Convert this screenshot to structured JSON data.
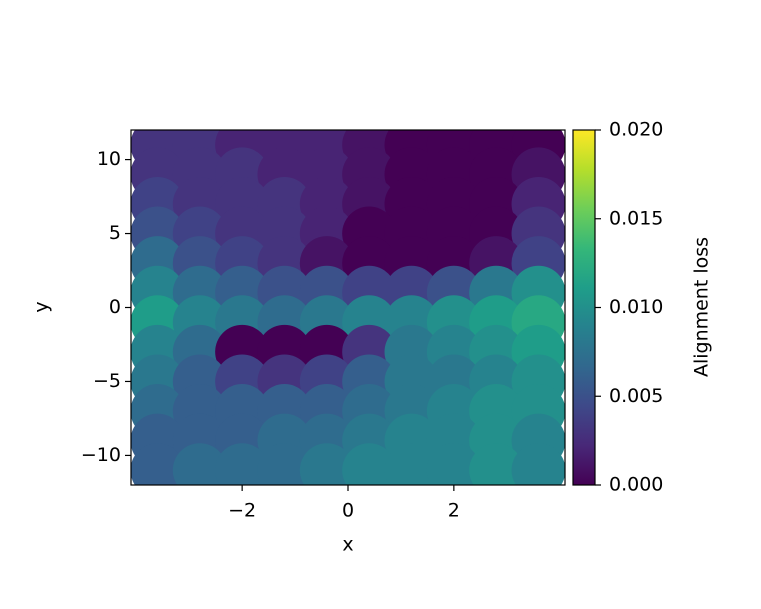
{
  "chart_data": {
    "type": "scatter",
    "x_label": "x",
    "y_label": "y",
    "colorbar_label": "Alignment loss",
    "colormap": "viridis",
    "xlim": [
      -4.1,
      4.1
    ],
    "ylim": [
      -12,
      12
    ],
    "clim": [
      0,
      0.02
    ],
    "xticks": [
      {
        "value": -2,
        "label": "−2"
      },
      0,
      2
    ],
    "yticks": [
      {
        "value": -10,
        "label": "−10"
      },
      {
        "value": -5,
        "label": "−5"
      },
      0,
      5,
      10
    ],
    "cticks": [
      {
        "value": 0,
        "label": "0.000"
      },
      {
        "value": 0.005,
        "label": "0.005"
      },
      {
        "value": 0.01,
        "label": "0.010"
      },
      {
        "value": 0.015,
        "label": "0.015"
      },
      {
        "value": 0.02,
        "label": "0.020"
      }
    ],
    "x": [
      -3.6,
      -2.8,
      -2.0,
      -1.2,
      -0.4,
      0.4,
      1.2,
      2.0,
      2.8,
      3.6,
      -3.6,
      -2.8,
      -2.0,
      -1.2,
      -0.4,
      0.4,
      1.2,
      2.0,
      2.8,
      3.6,
      -3.6,
      -2.8,
      -2.0,
      -1.2,
      -0.4,
      0.4,
      1.2,
      2.0,
      2.8,
      3.6,
      -3.6,
      -2.8,
      -2.0,
      -1.2,
      -0.4,
      0.4,
      1.2,
      2.0,
      2.8,
      3.6,
      -3.6,
      -2.8,
      -2.0,
      -1.2,
      -0.4,
      0.4,
      1.2,
      2.0,
      2.8,
      3.6,
      -3.6,
      -2.8,
      -2.0,
      -1.2,
      -0.4,
      0.4,
      1.2,
      2.0,
      2.8,
      3.6,
      -3.6,
      -2.8,
      -2.0,
      -1.2,
      -0.4,
      0.4,
      1.2,
      2.0,
      2.8,
      3.6,
      -3.6,
      -2.8,
      -2.0,
      -1.2,
      -0.4,
      0.4,
      1.2,
      2.0,
      2.8,
      3.6,
      -3.6,
      -2.8,
      -2.0,
      -1.2,
      -0.4,
      0.4,
      1.2,
      2.0,
      2.8,
      3.6,
      -3.6,
      -2.8,
      -2.0,
      -1.2,
      -0.4,
      0.4,
      1.2,
      2.0,
      2.8,
      3.6,
      -3.6,
      -2.8,
      -2.0,
      -1.2,
      -0.4,
      0.4,
      1.2,
      2.0,
      2.8,
      3.6,
      -3.6,
      -2.8,
      -2.0,
      -1.2,
      -0.4,
      0.4,
      1.2,
      2.0,
      2.8,
      3.6
    ],
    "y": [
      11,
      11,
      11,
      11,
      11,
      11,
      11,
      11,
      11,
      11,
      9,
      9,
      9,
      9,
      9,
      9,
      9,
      9,
      9,
      9,
      7,
      7,
      7,
      7,
      7,
      7,
      7,
      7,
      7,
      7,
      5,
      5,
      5,
      5,
      5,
      5,
      5,
      5,
      5,
      5,
      3,
      3,
      3,
      3,
      3,
      3,
      3,
      3,
      3,
      3,
      1,
      1,
      1,
      1,
      1,
      1,
      1,
      1,
      1,
      1,
      -1,
      -1,
      -1,
      -1,
      -1,
      -1,
      -1,
      -1,
      -1,
      -1,
      -3,
      -3,
      -3,
      -3,
      -3,
      -3,
      -3,
      -3,
      -3,
      -3,
      -5,
      -5,
      -5,
      -5,
      -5,
      -5,
      -5,
      -5,
      -5,
      -5,
      -7,
      -7,
      -7,
      -7,
      -7,
      -7,
      -7,
      -7,
      -7,
      -7,
      -9,
      -9,
      -9,
      -9,
      -9,
      -9,
      -9,
      -9,
      -9,
      -9,
      -11,
      -11,
      -11,
      -11,
      -11,
      -11,
      -11,
      -11,
      -11,
      -11
    ],
    "values": [
      0.003,
      0.003,
      0.002,
      0.002,
      0.002,
      0.001,
      0,
      0,
      0,
      0,
      0.003,
      0.003,
      0.003,
      0.002,
      0.002,
      0.001,
      0,
      0,
      0,
      0.001,
      0.004,
      0.003,
      0.003,
      0.003,
      0.002,
      0.001,
      0,
      0,
      0,
      0.002,
      0.005,
      0.004,
      0.003,
      0.003,
      0.002,
      0,
      0,
      0,
      0,
      0.003,
      0.007,
      0.005,
      0.004,
      0.003,
      0.001,
      0,
      0,
      0,
      0.001,
      0.004,
      0.009,
      0.007,
      0.006,
      0.005,
      0.005,
      0.004,
      0.004,
      0.005,
      0.008,
      0.01,
      0.011,
      0.009,
      0.008,
      0.007,
      0.008,
      0.009,
      0.009,
      0.01,
      0.011,
      0.012,
      0.009,
      0.007,
      0,
      0,
      0,
      0.003,
      0.008,
      0.009,
      0.01,
      0.011,
      0.008,
      0.006,
      0.004,
      0.003,
      0.004,
      0.006,
      0.008,
      0.008,
      0.009,
      0.01,
      0.007,
      0.006,
      0.006,
      0.006,
      0.006,
      0.007,
      0.008,
      0.009,
      0.01,
      0.01,
      0.006,
      0.006,
      0.006,
      0.007,
      0.007,
      0.008,
      0.009,
      0.009,
      0.01,
      0.009,
      0.006,
      0.007,
      0.007,
      0.007,
      0.008,
      0.009,
      0.009,
      0.009,
      0.01,
      0.009
    ]
  }
}
